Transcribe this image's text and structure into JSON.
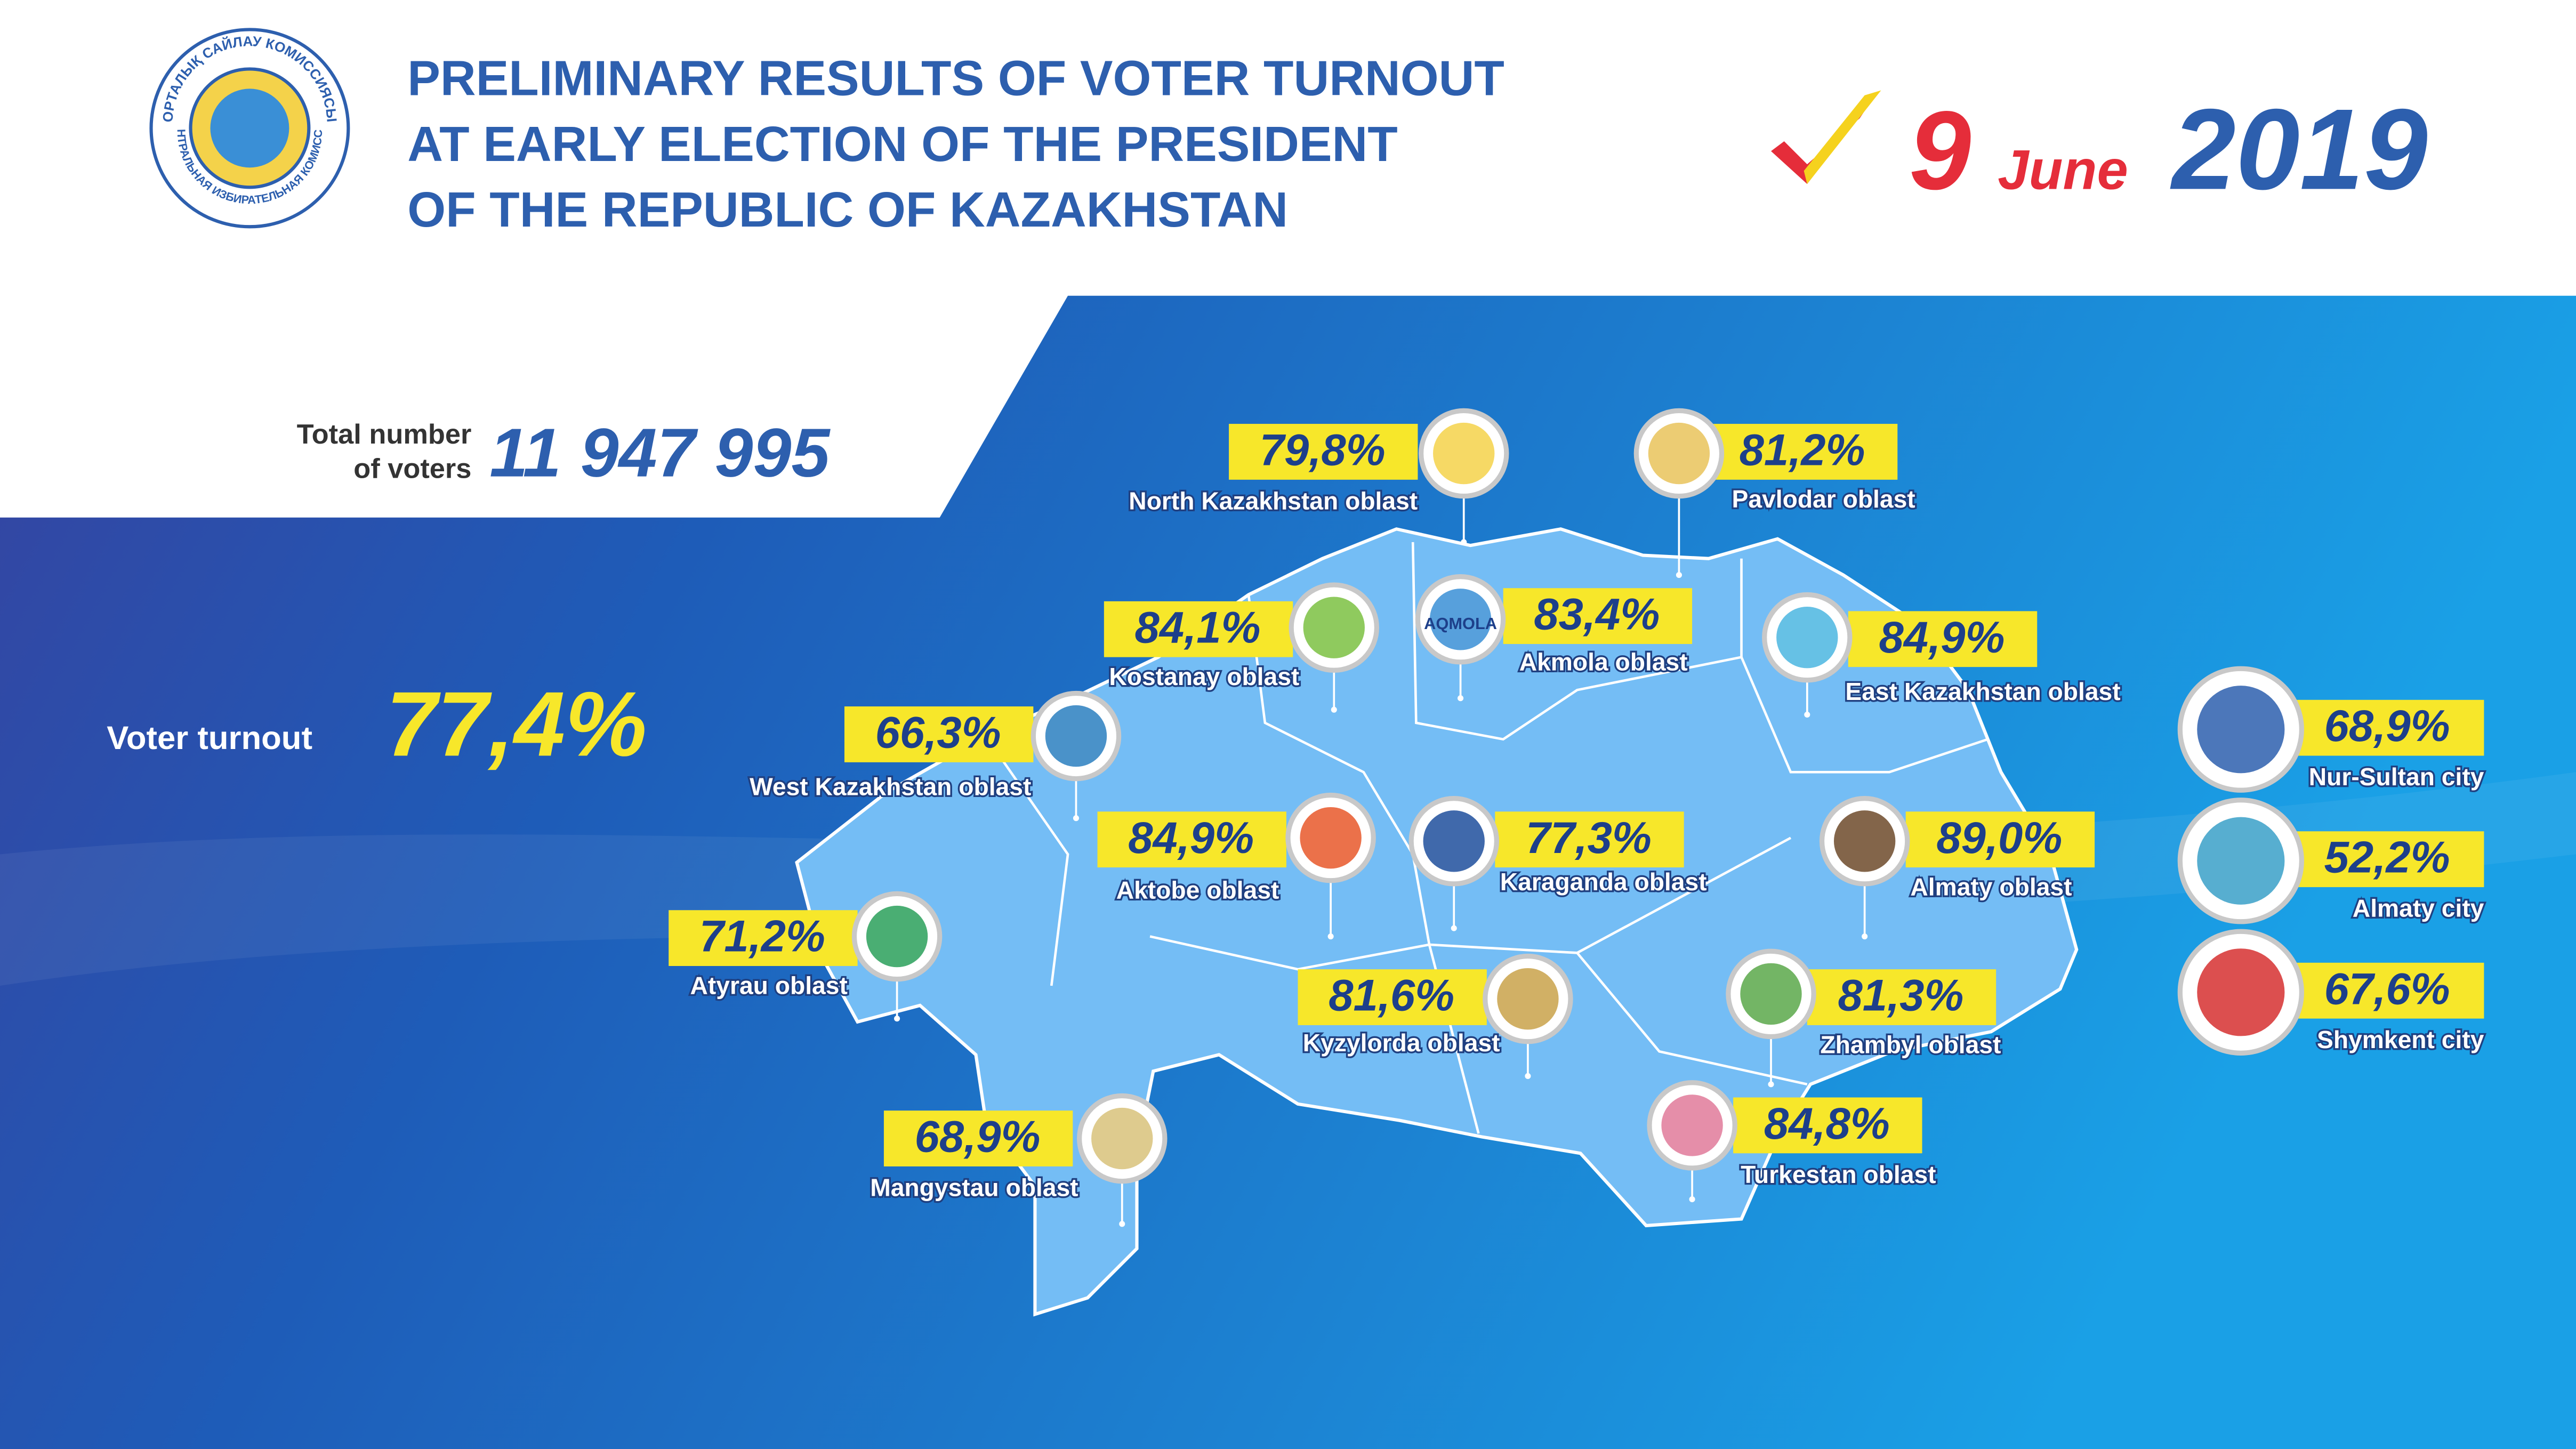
{
  "logo": {
    "outer_text": "ОРТАЛЫҚ САЙЛАУ КОМИССИЯСЫ",
    "inner_text": "ЦЕНТРАЛЬНАЯ ИЗБИРАТЕЛЬНАЯ КОМИССИЯ"
  },
  "header": {
    "title_lines": [
      "PRELIMINARY RESULTS OF VOTER TURNOUT",
      "AT EARLY ELECTION OF THE PRESIDENT",
      "OF THE REPUBLIC OF KAZAKHSTAN"
    ],
    "date": {
      "day": "9",
      "month": "June",
      "year": "2019"
    }
  },
  "summary": {
    "voters_label_lines": [
      "Total number",
      "of voters"
    ],
    "voters_value": "11 947 995",
    "turnout_label": "Voter turnout",
    "turnout_value": "77,4%"
  },
  "regions": [
    {
      "name": "North Kazakhstan oblast",
      "turnout": "79,8%"
    },
    {
      "name": "Pavlodar oblast",
      "turnout": "81,2%"
    },
    {
      "name": "Kostanay oblast",
      "turnout": "84,1%"
    },
    {
      "name": "Akmola oblast",
      "turnout": "83,4%",
      "emblem_text": "AQMOLA"
    },
    {
      "name": "East Kazakhstan oblast",
      "turnout": "84,9%"
    },
    {
      "name": "West Kazakhstan oblast",
      "turnout": "66,3%"
    },
    {
      "name": "Aktobe oblast",
      "turnout": "84,9%"
    },
    {
      "name": "Karaganda oblast",
      "turnout": "77,3%"
    },
    {
      "name": "Almaty oblast",
      "turnout": "89,0%"
    },
    {
      "name": "Atyrau oblast",
      "turnout": "71,2%"
    },
    {
      "name": "Kyzylorda oblast",
      "turnout": "81,6%"
    },
    {
      "name": "Zhambyl oblast",
      "turnout": "81,3%"
    },
    {
      "name": "Mangystau oblast",
      "turnout": "68,9%"
    },
    {
      "name": "Turkestan oblast",
      "turnout": "84,8%"
    }
  ],
  "cities": [
    {
      "name": "Nur-Sultan city",
      "turnout": "68,9%"
    },
    {
      "name": "Almaty city",
      "turnout": "52,2%"
    },
    {
      "name": "Shymkent city",
      "turnout": "67,6%"
    }
  ]
}
